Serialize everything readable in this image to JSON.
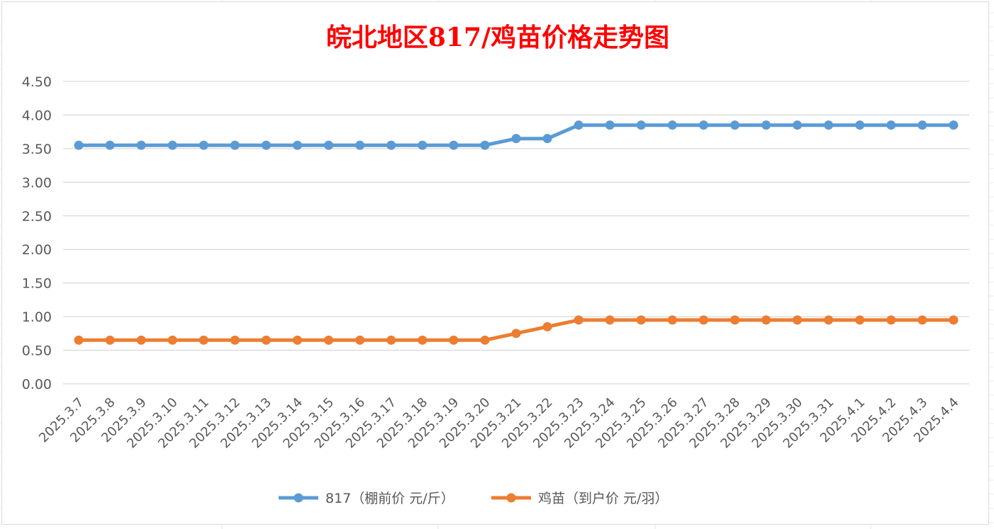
{
  "chart_data": {
    "type": "line",
    "title": "皖北地区817/鸡苗价格走势图",
    "title_color": "#ff0000",
    "xlabel": "",
    "ylabel": "",
    "ylim": [
      0,
      4.5
    ],
    "y_ticks": [
      "0.00",
      "0.50",
      "1.00",
      "1.50",
      "2.00",
      "2.50",
      "3.00",
      "3.50",
      "4.00",
      "4.50"
    ],
    "grid": true,
    "legend_position": "bottom",
    "categories": [
      "2025.3.7",
      "2025.3.8",
      "2025.3.9",
      "2025.3.10",
      "2025.3.11",
      "2025.3.12",
      "2025.3.13",
      "2025.3.14",
      "2025.3.15",
      "2025.3.16",
      "2025.3.17",
      "2025.3.18",
      "2025.3.19",
      "2025.3.20",
      "2025.3.21",
      "2025.3.22",
      "2025.3.23",
      "2025.3.24",
      "2025.3.25",
      "2025.3.26",
      "2025.3.27",
      "2025.3.28",
      "2025.3.29",
      "2025.3.30",
      "2025.3.31",
      "2025.4.1",
      "2025.4.2",
      "2025.4.3",
      "2025.4.4"
    ],
    "series": [
      {
        "name": "817（棚前价 元/斤）",
        "color": "#5b9bd5",
        "values": [
          3.55,
          3.55,
          3.55,
          3.55,
          3.55,
          3.55,
          3.55,
          3.55,
          3.55,
          3.55,
          3.55,
          3.55,
          3.55,
          3.55,
          3.65,
          3.65,
          3.85,
          3.85,
          3.85,
          3.85,
          3.85,
          3.85,
          3.85,
          3.85,
          3.85,
          3.85,
          3.85,
          3.85,
          3.85
        ]
      },
      {
        "name": "鸡苗（到户价 元/羽）",
        "color": "#ed7d31",
        "values": [
          0.65,
          0.65,
          0.65,
          0.65,
          0.65,
          0.65,
          0.65,
          0.65,
          0.65,
          0.65,
          0.65,
          0.65,
          0.65,
          0.65,
          0.75,
          0.85,
          0.95,
          0.95,
          0.95,
          0.95,
          0.95,
          0.95,
          0.95,
          0.95,
          0.95,
          0.95,
          0.95,
          0.95,
          0.95
        ]
      }
    ]
  }
}
